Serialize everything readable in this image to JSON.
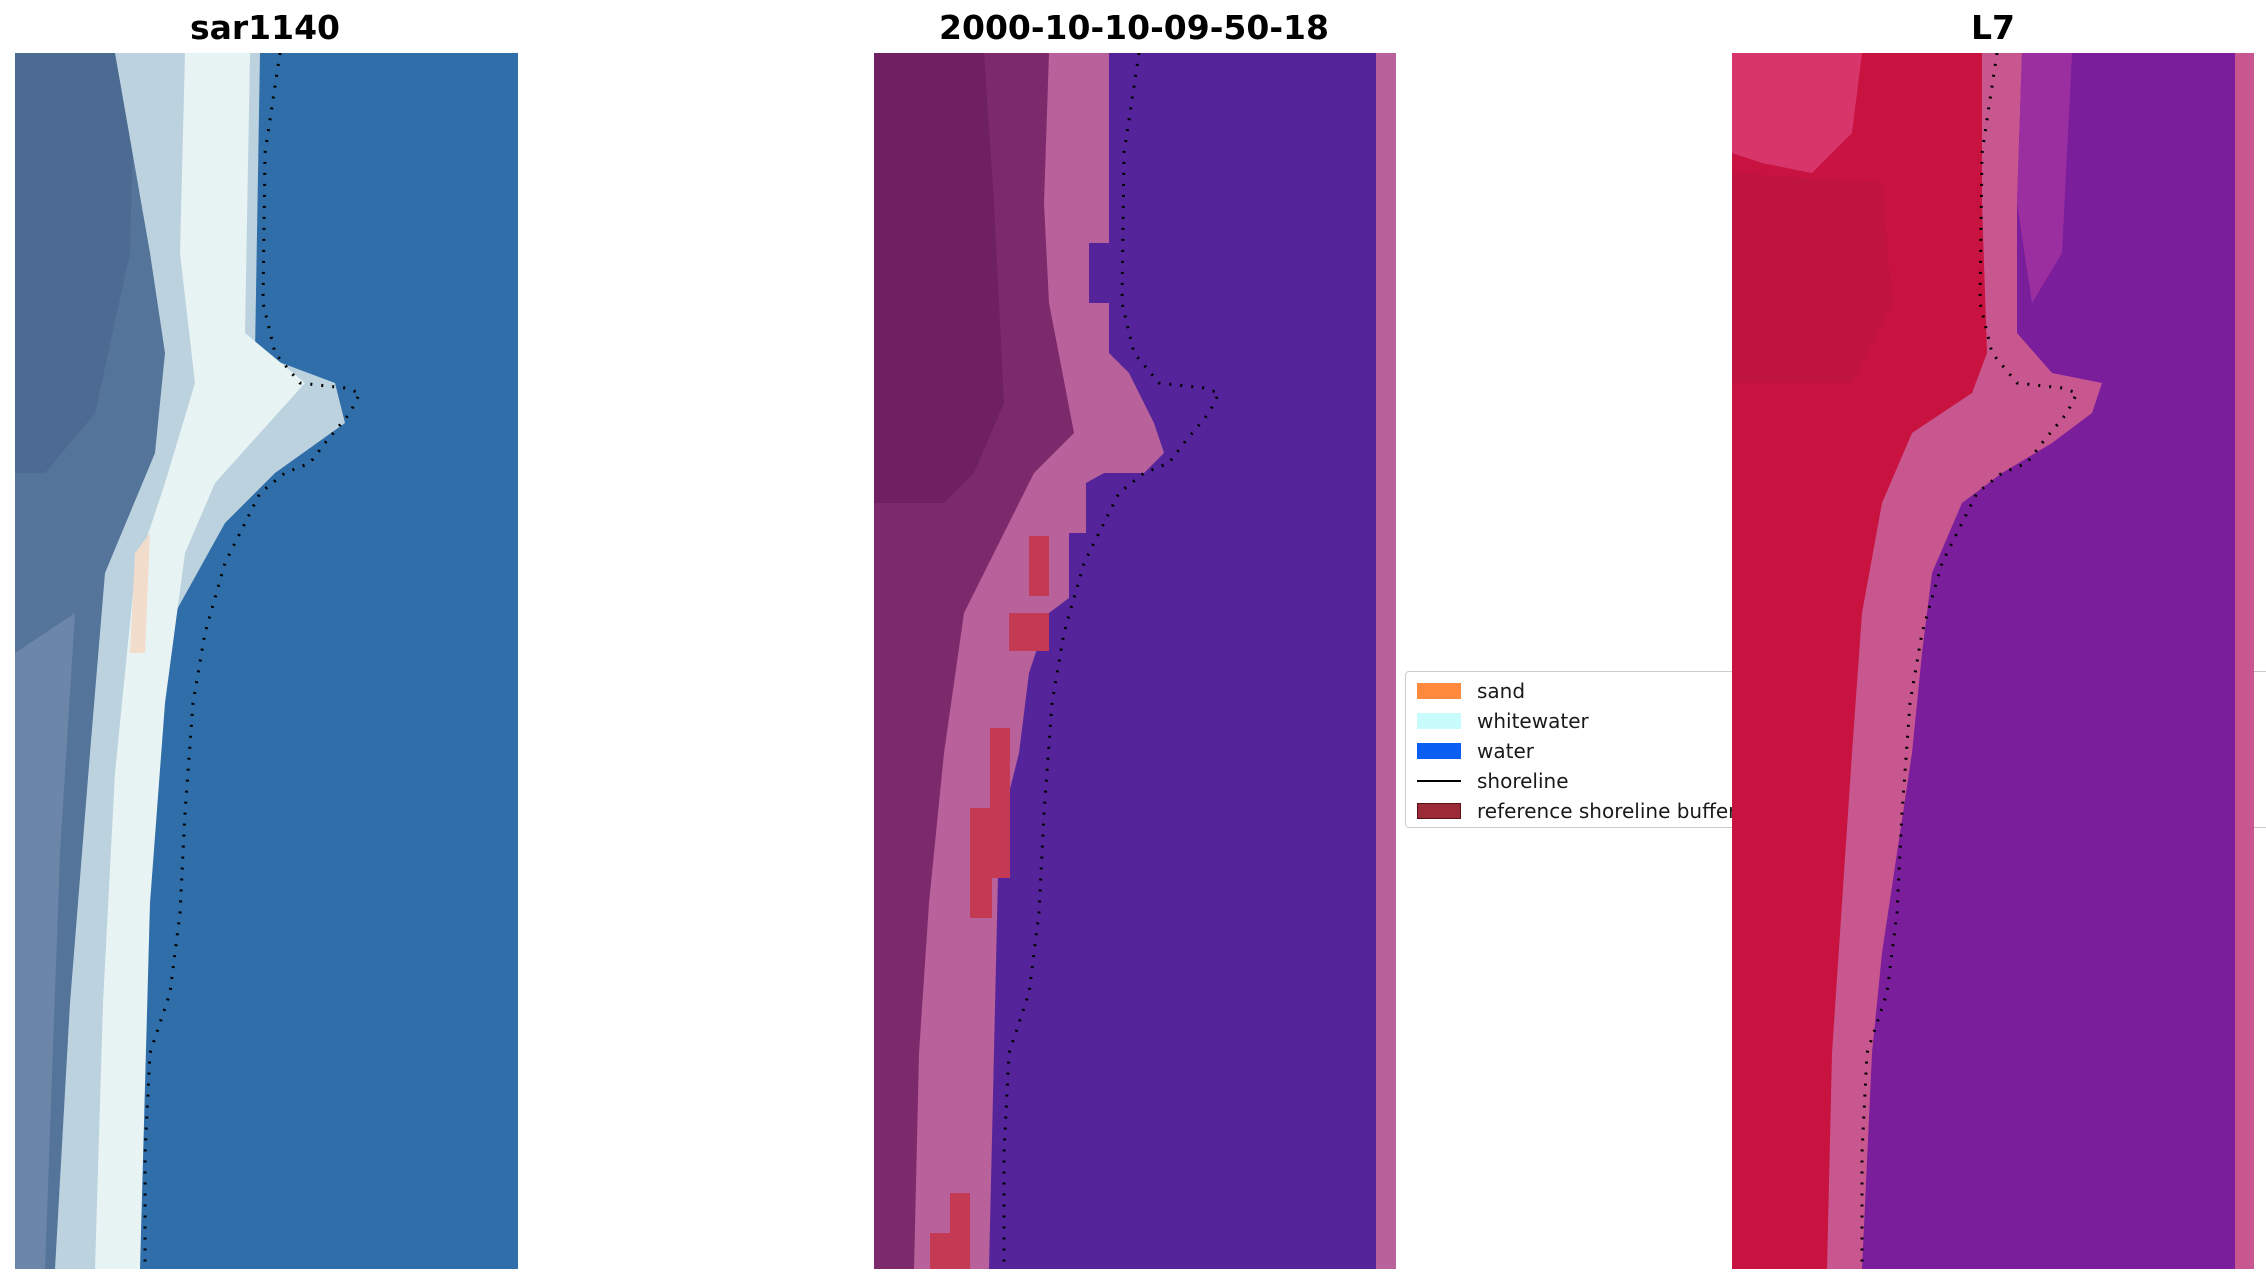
{
  "panels": [
    {
      "title": "sar1140"
    },
    {
      "title": "2000-10-10-09-50-18"
    },
    {
      "title": "L7"
    }
  ],
  "legend": [
    {
      "label": "sand",
      "color": "#ff8a3d",
      "kind": "patch"
    },
    {
      "label": "whitewater",
      "color": "#c8fcfc",
      "kind": "patch"
    },
    {
      "label": "water",
      "color": "#0a5ef2",
      "kind": "patch"
    },
    {
      "label": "shoreline",
      "color": "#000000",
      "kind": "line"
    },
    {
      "label": "reference shoreline buffer",
      "color": "#9c2b38",
      "kind": "patch"
    }
  ],
  "colors": {
    "rgb_water": "#2f6ea8",
    "rgb_whitewater": "#dfeef0",
    "rgb_land": "#55749a",
    "class_water": "#55249a",
    "class_sand": "#b8619a",
    "class_land": "#6f2060",
    "class_buffer": "#c43a55",
    "index_water": "#7a1e9c",
    "index_land": "#c8123f",
    "index_mid": "#c9578f"
  }
}
